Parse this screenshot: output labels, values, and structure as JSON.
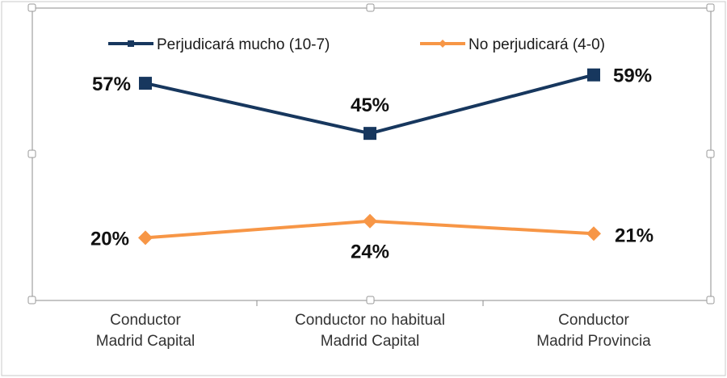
{
  "chart_data": {
    "type": "line",
    "categories": [
      [
        "Conductor",
        "Madrid Capital"
      ],
      [
        "Conductor no habitual",
        "Madrid Capital"
      ],
      [
        "Conductor",
        "Madrid Provincia"
      ]
    ],
    "series": [
      {
        "name": "Perjudicará mucho (10-7)",
        "values": [
          57,
          45,
          59
        ],
        "labels": [
          "57%",
          "45%",
          "59%"
        ],
        "color": "#17375e",
        "marker": "square"
      },
      {
        "name": "No perjudicará (4-0)",
        "values": [
          20,
          24,
          21
        ],
        "labels": [
          "20%",
          "24%",
          "21%"
        ],
        "color": "#f79646",
        "marker": "diamond"
      }
    ],
    "ylim": [
      5,
      75
    ],
    "grid": false,
    "legend_position": "top",
    "title": "",
    "xlabel": "",
    "ylabel": ""
  }
}
